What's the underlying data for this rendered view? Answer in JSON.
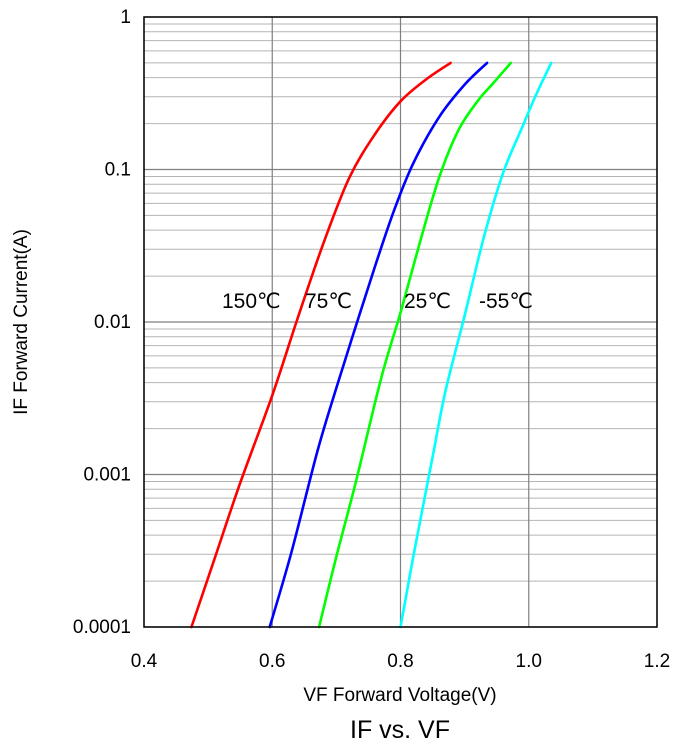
{
  "chart_data": {
    "type": "line",
    "title": "IF vs. VF",
    "xlabel": "VF Forward Voltage(V)",
    "ylabel": "IF Forward Current(A)",
    "xlim": [
      0.4,
      1.2
    ],
    "ylim": [
      0.0001,
      1
    ],
    "yscale": "log",
    "grid": true,
    "legend": "inline-labels",
    "x_ticks": [
      "0.4",
      "0.6",
      "0.8",
      "1.0",
      "1.2"
    ],
    "y_ticks": [
      "0.0001",
      "0.001",
      "0.01",
      "0.1",
      "1"
    ],
    "series": [
      {
        "name": "150℃",
        "color": "#ff0000",
        "points": [
          [
            0.474,
            0.0001
          ],
          [
            0.51,
            0.00028
          ],
          [
            0.55,
            0.00088
          ],
          [
            0.6,
            0.0033
          ],
          [
            0.64,
            0.0107
          ],
          [
            0.68,
            0.033
          ],
          [
            0.72,
            0.088
          ],
          [
            0.76,
            0.17
          ],
          [
            0.8,
            0.28
          ],
          [
            0.84,
            0.39
          ],
          [
            0.878,
            0.5
          ]
        ]
      },
      {
        "name": "75℃",
        "color": "#0000ff",
        "points": [
          [
            0.596,
            0.0001
          ],
          [
            0.63,
            0.00031
          ],
          [
            0.67,
            0.0014
          ],
          [
            0.7,
            0.0037
          ],
          [
            0.73,
            0.0093
          ],
          [
            0.76,
            0.023
          ],
          [
            0.79,
            0.054
          ],
          [
            0.82,
            0.11
          ],
          [
            0.86,
            0.22
          ],
          [
            0.9,
            0.36
          ],
          [
            0.935,
            0.5
          ]
        ]
      },
      {
        "name": "25℃",
        "color": "#00ff00",
        "points": [
          [
            0.673,
            0.0001
          ],
          [
            0.7,
            0.00029
          ],
          [
            0.73,
            0.00088
          ],
          [
            0.77,
            0.0043
          ],
          [
            0.8,
            0.0115
          ],
          [
            0.83,
            0.033
          ],
          [
            0.86,
            0.088
          ],
          [
            0.89,
            0.18
          ],
          [
            0.92,
            0.28
          ],
          [
            0.945,
            0.37
          ],
          [
            0.972,
            0.5
          ]
        ]
      },
      {
        "name": "-55℃",
        "color": "#00ffff",
        "points": [
          [
            0.8,
            0.0001
          ],
          [
            0.82,
            0.00029
          ],
          [
            0.85,
            0.0013
          ],
          [
            0.87,
            0.0035
          ],
          [
            0.9,
            0.011
          ],
          [
            0.93,
            0.036
          ],
          [
            0.96,
            0.095
          ],
          [
            0.99,
            0.19
          ],
          [
            1.01,
            0.3
          ],
          [
            1.035,
            0.5
          ]
        ]
      }
    ]
  }
}
